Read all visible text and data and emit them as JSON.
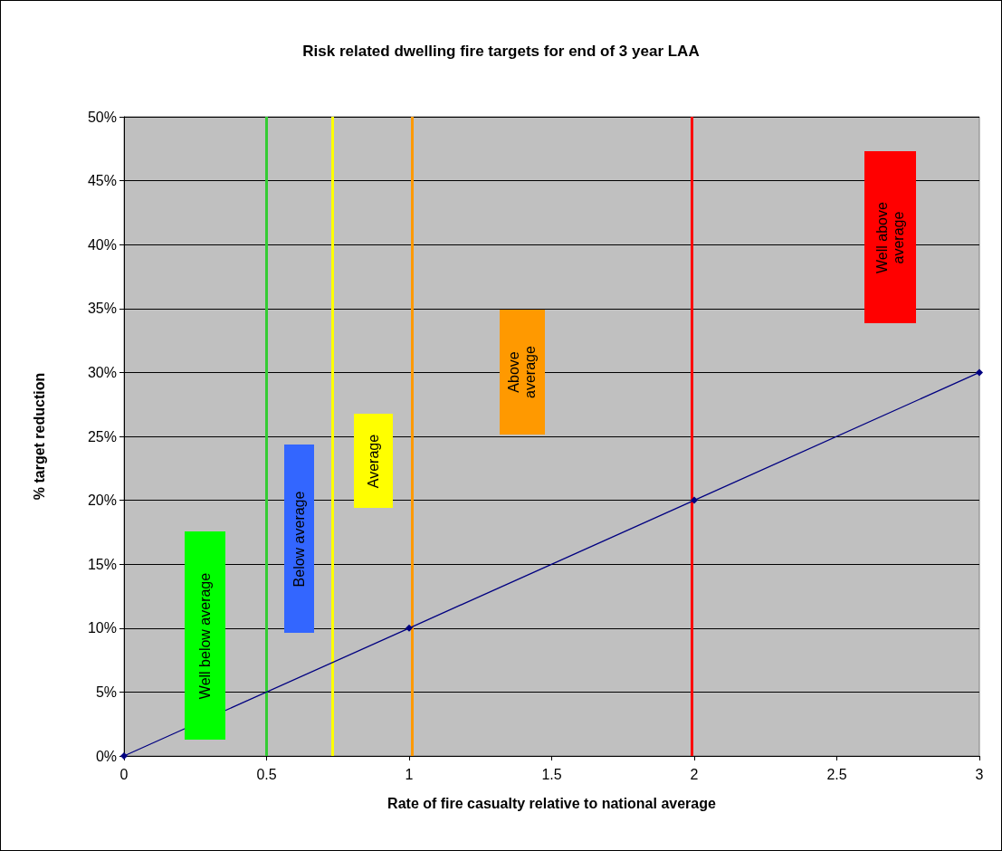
{
  "chart_data": {
    "type": "line",
    "title": "Risk related dwelling fire targets for end of 3 year LAA",
    "xlabel": "Rate of fire casualty relative to national average",
    "ylabel": "% target reduction",
    "x": [
      0,
      1,
      2,
      3
    ],
    "series": [
      {
        "color": "#000080",
        "values": [
          0,
          10,
          20,
          30
        ]
      }
    ],
    "marker": "diamond",
    "line_style": "solid",
    "grid": "y",
    "xlim": [
      0,
      3
    ],
    "xticks": [
      0,
      0.5,
      1,
      1.5,
      2,
      2.5,
      3
    ],
    "ylim": [
      0,
      50
    ],
    "yticks": [
      {
        "value": 0,
        "label": "0%"
      },
      {
        "value": 5,
        "label": "5%"
      },
      {
        "value": 10,
        "label": "10%"
      },
      {
        "value": 15,
        "label": "15%"
      },
      {
        "value": 20,
        "label": "20%"
      },
      {
        "value": 25,
        "label": "25%"
      },
      {
        "value": 30,
        "label": "30%"
      },
      {
        "value": 35,
        "label": "35%"
      },
      {
        "value": 40,
        "label": "40%"
      },
      {
        "value": 45,
        "label": "45%"
      },
      {
        "value": 50,
        "label": "50%"
      }
    ],
    "ref_lines": [
      {
        "axis": "x",
        "value": 0.5,
        "color": "#33cc33"
      },
      {
        "axis": "x",
        "value": 0.73,
        "color": "#ffff00"
      },
      {
        "axis": "x",
        "value": 1.01,
        "color": "#ff9900"
      },
      {
        "axis": "x",
        "value": 1.99,
        "color": "#ff0000"
      }
    ],
    "annotations": [
      "Well below average",
      "Below average",
      "Average",
      "Above average",
      "Well above average"
    ]
  }
}
